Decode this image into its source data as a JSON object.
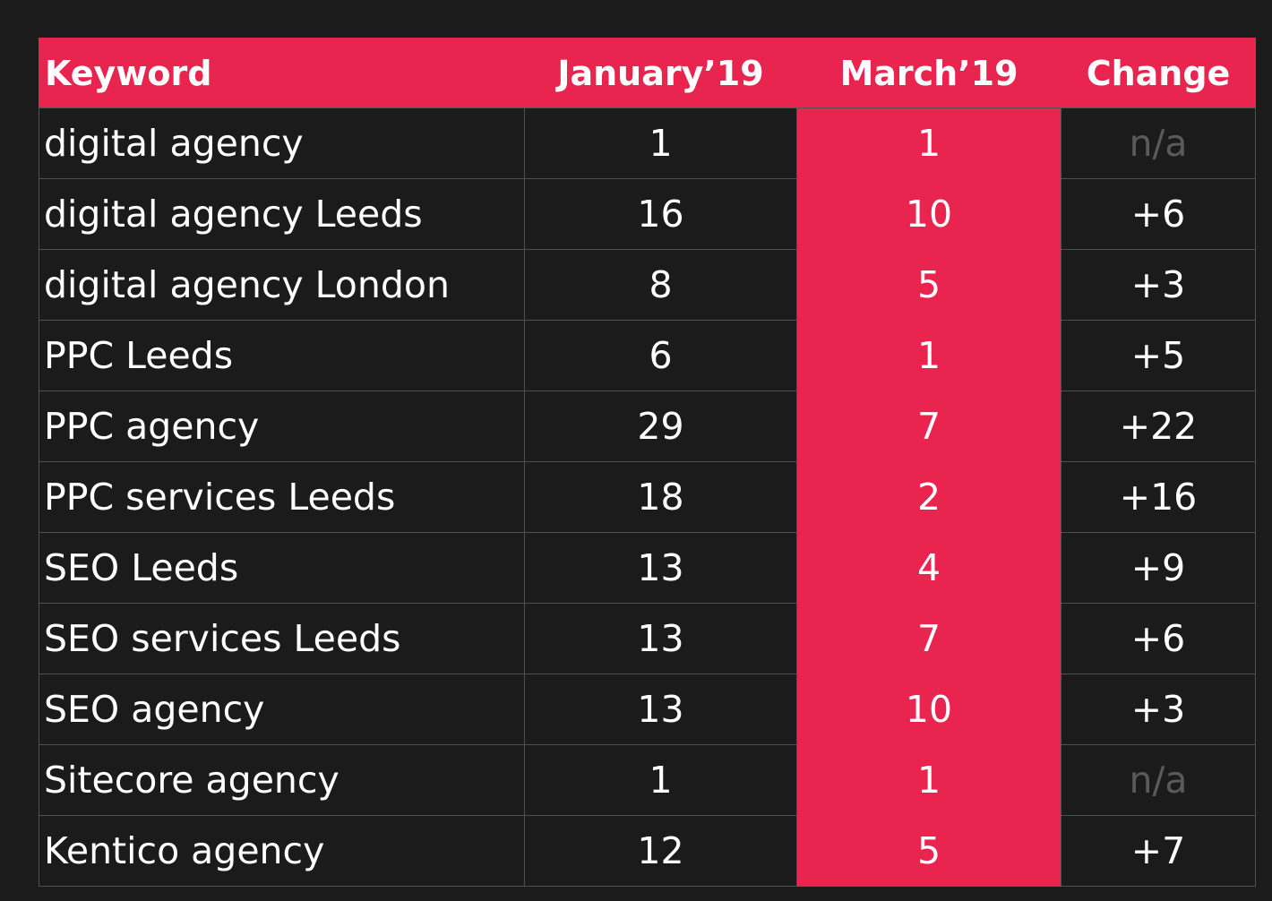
{
  "chart_data": {
    "type": "table",
    "columns": [
      "Keyword",
      "January’19",
      "March’19",
      "Change"
    ],
    "rows": [
      {
        "keyword": "digital agency",
        "january": "1",
        "march": "1",
        "change": "n/a"
      },
      {
        "keyword": "digital agency Leeds",
        "january": "16",
        "march": "10",
        "change": "+6"
      },
      {
        "keyword": "digital agency London",
        "january": "8",
        "march": "5",
        "change": "+3"
      },
      {
        "keyword": "PPC Leeds",
        "january": "6",
        "march": "1",
        "change": "+5"
      },
      {
        "keyword": "PPC agency",
        "january": "29",
        "march": "7",
        "change": "+22"
      },
      {
        "keyword": "PPC services Leeds",
        "january": "18",
        "march": "2",
        "change": "+16"
      },
      {
        "keyword": "SEO Leeds",
        "january": "13",
        "march": "4",
        "change": "+9"
      },
      {
        "keyword": "SEO services Leeds",
        "january": "13",
        "march": "7",
        "change": "+6"
      },
      {
        "keyword": "SEO agency",
        "january": "13",
        "march": "10",
        "change": "+3"
      },
      {
        "keyword": "Sitecore agency",
        "january": "1",
        "march": "1",
        "change": "n/a"
      },
      {
        "keyword": "Kentico agency",
        "january": "12",
        "march": "5",
        "change": "+7"
      }
    ]
  },
  "colors": {
    "accent": "#e8244f",
    "background": "#1c1b1c",
    "muted_text": "#5a5a5a"
  }
}
